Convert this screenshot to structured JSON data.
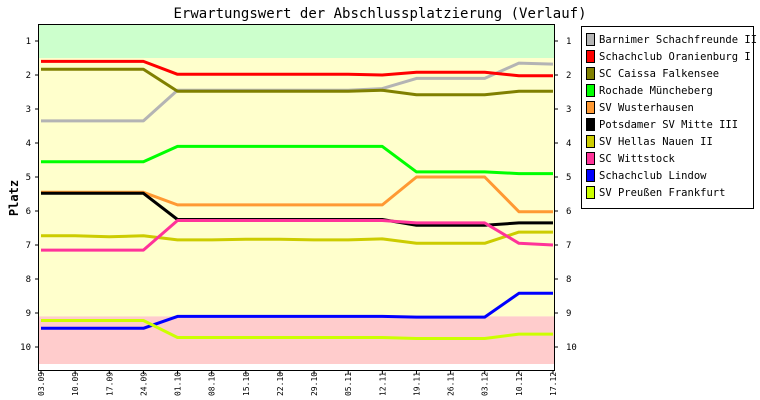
{
  "chart_data": {
    "type": "line",
    "title": "Erwartungswert der Abschlussplatzierung (Verlauf)",
    "xlabel": "",
    "ylabel": "Platz",
    "ylim": [
      1,
      10
    ],
    "y_inverted": true,
    "grid": false,
    "legend_position": "right",
    "categories": [
      "03.09",
      "10.09",
      "17.09",
      "24.09",
      "01.10",
      "08.10",
      "15.10",
      "22.10",
      "29.10",
      "05.11",
      "12.11",
      "19.11",
      "26.11",
      "03.12",
      "10.12",
      "17.12"
    ],
    "y_ticks": [
      1,
      2,
      3,
      4,
      5,
      6,
      7,
      8,
      9,
      10
    ],
    "bands": [
      {
        "from": 0.5,
        "to": 1.5,
        "color": "#ccffcc"
      },
      {
        "from": 1.5,
        "to": 9.1,
        "color": "#ffffcc"
      },
      {
        "from": 9.1,
        "to": 10.5,
        "color": "#ffcccc"
      }
    ],
    "series": [
      {
        "name": "Barnimer Schachfreunde II",
        "color": "#b4b4b4",
        "values": [
          3.35,
          3.35,
          3.35,
          3.35,
          2.45,
          2.45,
          2.45,
          2.45,
          2.45,
          2.45,
          2.4,
          2.1,
          2.1,
          2.1,
          1.65,
          1.68
        ]
      },
      {
        "name": "Schachclub Oranienburg I",
        "color": "#ff0000",
        "values": [
          1.6,
          1.6,
          1.6,
          1.6,
          1.98,
          1.98,
          1.98,
          1.98,
          1.98,
          1.98,
          2.0,
          1.92,
          1.92,
          1.92,
          2.02,
          2.02
        ]
      },
      {
        "name": "SC Caissa Falkensee",
        "color": "#808000",
        "values": [
          1.83,
          1.83,
          1.83,
          1.83,
          2.48,
          2.48,
          2.48,
          2.48,
          2.48,
          2.48,
          2.45,
          2.58,
          2.58,
          2.58,
          2.48,
          2.48
        ]
      },
      {
        "name": "Rochade Müncheberg",
        "color": "#00ff00",
        "values": [
          4.55,
          4.55,
          4.55,
          4.55,
          4.1,
          4.1,
          4.1,
          4.1,
          4.1,
          4.1,
          4.1,
          4.85,
          4.85,
          4.85,
          4.9,
          4.9
        ]
      },
      {
        "name": "SV Wusterhausen",
        "color": "#ff9933",
        "values": [
          5.45,
          5.45,
          5.45,
          5.45,
          5.82,
          5.82,
          5.82,
          5.82,
          5.82,
          5.82,
          5.82,
          5.0,
          5.0,
          5.0,
          6.02,
          6.02
        ]
      },
      {
        "name": "Potsdamer SV Mitte III",
        "color": "#000000",
        "values": [
          5.48,
          5.48,
          5.48,
          5.48,
          6.25,
          6.25,
          6.25,
          6.25,
          6.25,
          6.25,
          6.25,
          6.42,
          6.42,
          6.42,
          6.35,
          6.35
        ]
      },
      {
        "name": "SV Hellas Nauen II",
        "color": "#cccc00",
        "values": [
          6.73,
          6.73,
          6.76,
          6.73,
          6.85,
          6.85,
          6.83,
          6.83,
          6.85,
          6.85,
          6.82,
          6.95,
          6.95,
          6.95,
          6.62,
          6.62
        ]
      },
      {
        "name": "SC Wittstock",
        "color": "#ff3399",
        "values": [
          7.15,
          7.15,
          7.15,
          7.15,
          6.28,
          6.28,
          6.28,
          6.28,
          6.28,
          6.28,
          6.28,
          6.35,
          6.35,
          6.35,
          6.95,
          7.0
        ]
      },
      {
        "name": "Schachclub Lindow",
        "color": "#0000ff",
        "values": [
          9.45,
          9.45,
          9.45,
          9.45,
          9.1,
          9.1,
          9.1,
          9.1,
          9.1,
          9.1,
          9.1,
          9.12,
          9.12,
          9.12,
          8.42,
          8.42
        ]
      },
      {
        "name": "SV Preußen Frankfurt",
        "color": "#ccff00",
        "values": [
          9.22,
          9.22,
          9.22,
          9.22,
          9.72,
          9.72,
          9.72,
          9.72,
          9.72,
          9.72,
          9.72,
          9.75,
          9.75,
          9.75,
          9.62,
          9.62
        ]
      }
    ]
  }
}
